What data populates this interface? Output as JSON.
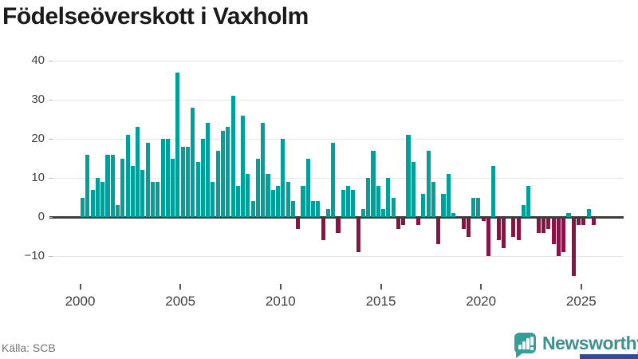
{
  "title": "Födelseöverskott i Vaxholm",
  "source": "Källa: SCB",
  "logo": {
    "text": "Newsworthy",
    "icon": "bar-chart-speech-bubble"
  },
  "colors": {
    "positive": "#00a09a",
    "negative": "#8e1044",
    "axis": "#3d3d3d",
    "grid": "#e6e6e6",
    "title_text": "#1a1a1a",
    "tick_text": "#3f3f3f",
    "source_text": "#757575",
    "logo_teal": "#35a09a",
    "brand_blue": "#2b4da1"
  },
  "chart_data": {
    "type": "bar",
    "title": "Födelseöverskott i Vaxholm",
    "frequency": "quarterly",
    "start_year": 2000,
    "start_quarter": 1,
    "end_year": 2025,
    "end_quarter": 3,
    "xlabel": "",
    "ylabel": "",
    "ylim": [
      -15,
      40
    ],
    "grid": "horizontal",
    "y_ticks": [
      40,
      30,
      20,
      10,
      0,
      -10
    ],
    "y_tick_labels": [
      "40",
      "30",
      "20",
      "10",
      "0",
      "−10"
    ],
    "x_tick_years": [
      2000,
      2005,
      2010,
      2015,
      2020,
      2025
    ],
    "x_tick_labels": [
      "2000",
      "2005",
      "2010",
      "2015",
      "2020",
      "2025"
    ],
    "series": [
      {
        "name": "Födelseöverskott",
        "values": [
          5,
          16,
          7,
          10,
          9,
          16,
          16,
          3,
          15,
          21,
          13,
          23,
          12,
          19,
          9,
          9,
          20,
          20,
          15,
          37,
          18,
          18,
          28,
          14,
          20,
          24,
          9,
          17,
          22,
          23,
          31,
          8,
          26,
          11,
          4,
          15,
          24,
          11,
          7,
          8,
          20,
          9,
          4,
          -3,
          8,
          15,
          4,
          4,
          -6,
          2,
          19,
          -4,
          7,
          8,
          7,
          -9,
          2,
          10,
          17,
          8,
          2,
          10,
          5,
          -3,
          -2,
          21,
          14,
          -2,
          6,
          17,
          9,
          -7,
          6,
          11,
          1,
          0,
          -3,
          -5,
          5,
          5,
          -1,
          -10,
          13,
          -6,
          -8,
          0,
          -5,
          -6,
          3,
          8,
          0,
          -4,
          -4,
          -3,
          -7,
          -10,
          -9,
          1,
          -15,
          -2,
          -2,
          2,
          -2
        ]
      }
    ]
  }
}
